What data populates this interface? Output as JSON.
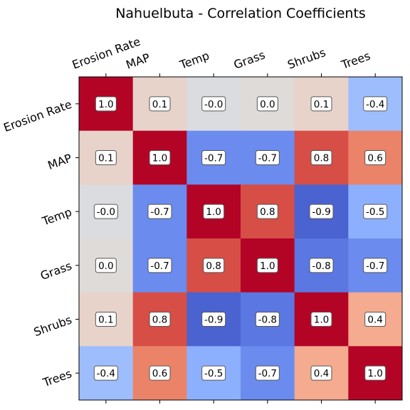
{
  "chart_data": {
    "type": "heatmap",
    "title": "Nahuelbuta - Correlation Coefficients",
    "labels": [
      "Erosion Rate",
      "MAP",
      "Temp",
      "Grass",
      "Shrubs",
      "Trees"
    ],
    "display": [
      [
        "1.0",
        "0.1",
        "-0.0",
        "0.0",
        "0.1",
        "-0.4"
      ],
      [
        "0.1",
        "1.0",
        "-0.7",
        "-0.7",
        "0.8",
        "0.6"
      ],
      [
        "-0.0",
        "-0.7",
        "1.0",
        "0.8",
        "-0.9",
        "-0.5"
      ],
      [
        "0.0",
        "-0.7",
        "0.8",
        "1.0",
        "-0.8",
        "-0.7"
      ],
      [
        "0.1",
        "0.8",
        "-0.9",
        "-0.8",
        "1.0",
        "0.4"
      ],
      [
        "-0.4",
        "0.6",
        "-0.5",
        "-0.7",
        "0.4",
        "1.0"
      ]
    ],
    "values": [
      [
        1.0,
        0.1,
        -0.02,
        0.02,
        0.1,
        -0.4
      ],
      [
        0.1,
        1.0,
        -0.7,
        -0.7,
        0.8,
        0.6
      ],
      [
        -0.02,
        -0.7,
        1.0,
        0.8,
        -0.9,
        -0.5
      ],
      [
        0.02,
        -0.7,
        0.8,
        1.0,
        -0.8,
        -0.7
      ],
      [
        0.1,
        0.8,
        -0.9,
        -0.8,
        1.0,
        0.4
      ],
      [
        -0.4,
        0.6,
        -0.5,
        -0.7,
        0.4,
        1.0
      ]
    ],
    "colormap": "coolwarm",
    "vmin": -1,
    "vmax": 1
  }
}
